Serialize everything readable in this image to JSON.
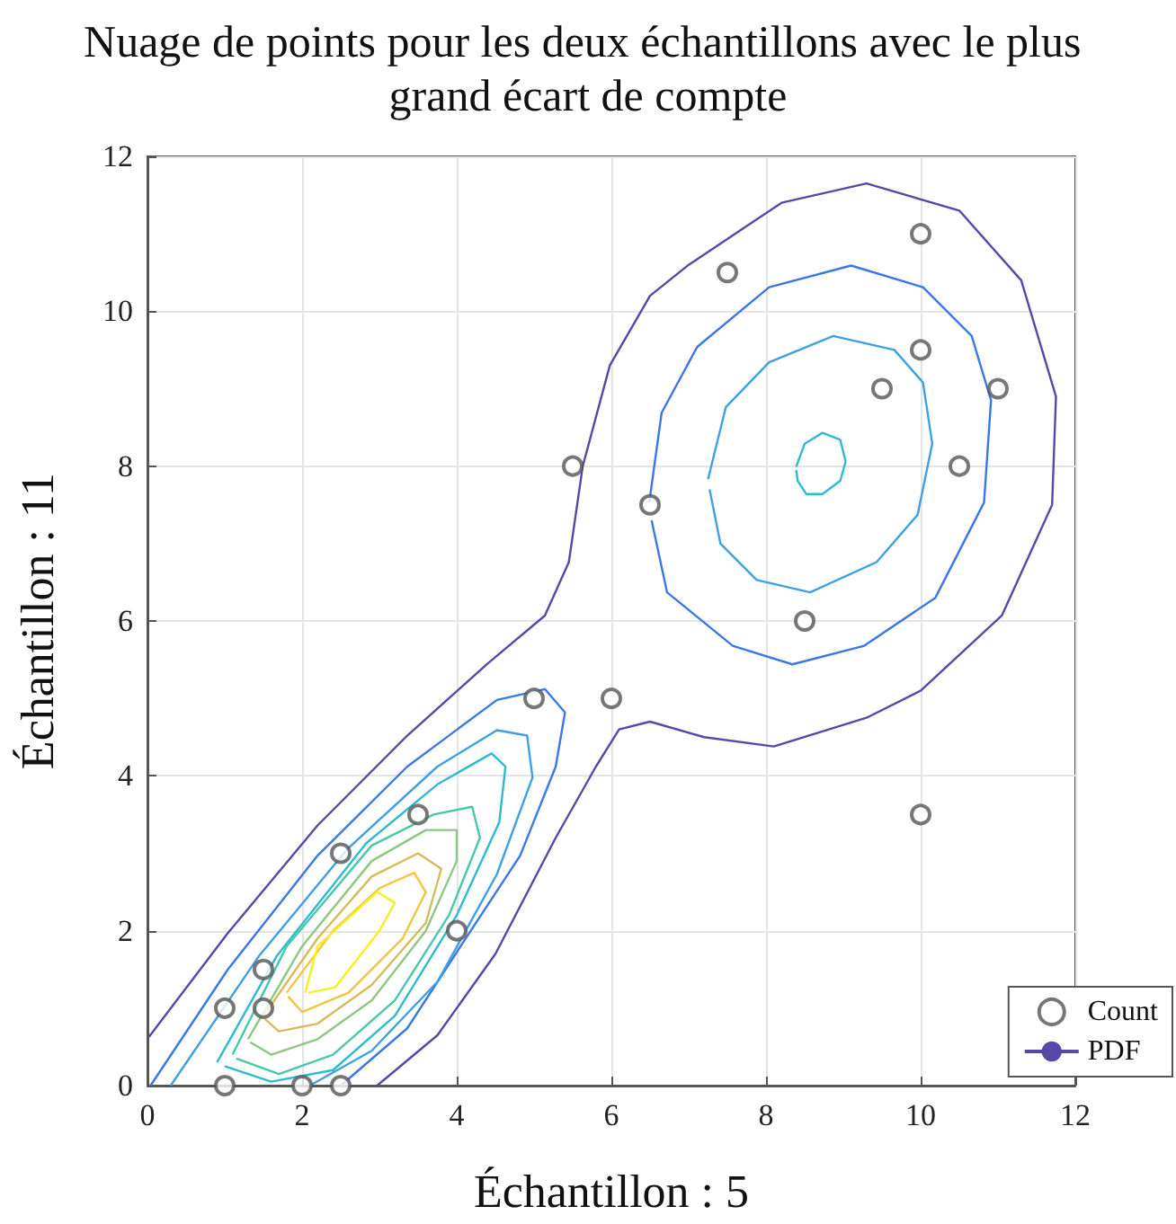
{
  "chart_data": {
    "type": "scatter",
    "title": "Nuage de points pour les deux échantillons avec le plus grand écart de compte",
    "xlabel": "Échantillon : 5",
    "ylabel": "Échantillon : 11",
    "xlim": [
      0,
      12
    ],
    "ylim": [
      0,
      12
    ],
    "xticks": [
      0,
      2,
      4,
      6,
      8,
      10,
      12
    ],
    "yticks": [
      0,
      2,
      4,
      6,
      8,
      10,
      12
    ],
    "grid": true,
    "legend": "bottom right",
    "series": [
      {
        "name": "Count",
        "marker": "circle",
        "color": "#555555",
        "x": [
          1,
          1,
          1.5,
          1.5,
          2,
          2.5,
          2.5,
          3.5,
          4,
          5,
          6,
          5.5,
          6.5,
          7.5,
          8.5,
          9.5,
          10,
          10,
          11,
          10.5,
          10
        ],
        "values": [
          0,
          1,
          1,
          1.5,
          0,
          0,
          3,
          3.5,
          2,
          5,
          5,
          8,
          7.5,
          10.5,
          6,
          9,
          11,
          9.5,
          9,
          8,
          3.5
        ]
      },
      {
        "name": "PDF",
        "type": "line",
        "marker": "none",
        "color": "#5548a8",
        "x": [
          0.02,
          1.04,
          2.2,
          3.36,
          4.4,
          5.14,
          5.45,
          5.63,
          5.98,
          6.5,
          7.0,
          8.2,
          9.3,
          10.5,
          11.3,
          11.75,
          11.7,
          11.05,
          10.0,
          9.3,
          8.1,
          7.2,
          6.5,
          6.1,
          5.8,
          5.28,
          4.5,
          3.75,
          2.97
        ],
        "values": [
          0.63,
          1.97,
          3.36,
          4.52,
          5.45,
          6.07,
          6.76,
          8.0,
          9.3,
          10.2,
          10.6,
          11.4,
          11.65,
          11.3,
          10.4,
          8.9,
          7.5,
          6.07,
          5.1,
          4.75,
          4.38,
          4.5,
          4.7,
          4.6,
          4.12,
          3.2,
          1.7,
          0.65,
          0
        ]
      },
      {
        "type": "line",
        "marker": "none",
        "color": "#3a78e6",
        "x": [
          6.49,
          6.65,
          7.11,
          8.04,
          9.1,
          10.03,
          10.66,
          10.91,
          10.82,
          10.19,
          9.27,
          8.34,
          7.57,
          6.72,
          6.52
        ],
        "values": [
          7.53,
          8.69,
          9.54,
          10.31,
          10.59,
          10.31,
          9.68,
          8.85,
          7.53,
          6.3,
          5.68,
          5.44,
          5.68,
          6.37,
          7.3
        ]
      },
      {
        "type": "line",
        "marker": "none",
        "color": "#3a78e6",
        "x": [
          0.04,
          1.04,
          2.2,
          3.36,
          4.52,
          5.14,
          5.4,
          5.28,
          4.82,
          4.05,
          3.36,
          2.5
        ],
        "values": [
          0,
          1.5,
          2.97,
          4.12,
          4.98,
          5.12,
          4.82,
          4.12,
          2.97,
          1.8,
          0.74,
          0
        ]
      },
      {
        "type": "line",
        "marker": "none",
        "color": "#3ea0e4",
        "x": [
          7.25,
          7.48,
          8.04,
          8.87,
          9.66,
          10.03,
          10.15,
          9.96,
          9.43,
          8.57,
          7.88,
          7.41,
          7.27
        ],
        "values": [
          7.83,
          8.76,
          9.34,
          9.68,
          9.5,
          9.08,
          8.29,
          7.37,
          6.76,
          6.37,
          6.53,
          7.0,
          7.7
        ]
      },
      {
        "type": "line",
        "marker": "none",
        "color": "#3ea0e4",
        "x": [
          0.3,
          1.44,
          2.59,
          3.75,
          4.52,
          4.91,
          4.98,
          4.52,
          3.75,
          2.9,
          2.1
        ],
        "values": [
          0,
          1.67,
          3.06,
          4.12,
          4.59,
          4.52,
          3.98,
          2.73,
          1.34,
          0.45,
          0
        ]
      },
      {
        "type": "line",
        "marker": "none",
        "color": "#2dbbd0",
        "x": [
          8.39,
          8.5,
          8.73,
          8.96,
          9.03,
          8.96,
          8.73,
          8.52,
          8.41,
          8.39
        ],
        "values": [
          7.99,
          8.29,
          8.43,
          8.34,
          8.06,
          7.81,
          7.64,
          7.64,
          7.81,
          7.95
        ]
      },
      {
        "type": "line",
        "marker": "none",
        "color": "#2dbbd0",
        "x": [
          0.9,
          1.67,
          2.83,
          3.75,
          4.45,
          4.63,
          4.55,
          4.0,
          3.2,
          2.4,
          1.6,
          1.0
        ],
        "values": [
          0.3,
          1.67,
          3.13,
          3.89,
          4.29,
          4.12,
          3.4,
          2.2,
          0.9,
          0.2,
          0.05,
          0.25
        ]
      },
      {
        "type": "line",
        "marker": "none",
        "color": "#48c8a8",
        "x": [
          1.1,
          1.8,
          2.9,
          3.7,
          4.2,
          4.3,
          3.9,
          3.2,
          2.4,
          1.7,
          1.15
        ],
        "values": [
          0.4,
          1.8,
          3.1,
          3.5,
          3.6,
          3.2,
          2.2,
          1.1,
          0.4,
          0.15,
          0.35
        ]
      },
      {
        "type": "line",
        "marker": "none",
        "color": "#8cc880",
        "x": [
          1.3,
          2.0,
          2.9,
          3.6,
          4.0,
          4.0,
          3.6,
          2.9,
          2.2,
          1.6,
          1.33
        ],
        "values": [
          0.6,
          1.8,
          2.9,
          3.3,
          3.3,
          2.9,
          2.0,
          1.1,
          0.6,
          0.4,
          0.56
        ]
      },
      {
        "type": "line",
        "marker": "none",
        "color": "#d4bc5c",
        "x": [
          1.5,
          2.2,
          2.9,
          3.5,
          3.8,
          3.6,
          2.9,
          2.2,
          1.7,
          1.52
        ],
        "values": [
          0.9,
          1.9,
          2.7,
          3.0,
          2.8,
          2.1,
          1.3,
          0.8,
          0.7,
          0.86
        ]
      },
      {
        "type": "line",
        "marker": "none",
        "color": "#f6c440",
        "x": [
          1.8,
          2.4,
          3.0,
          3.45,
          3.6,
          3.3,
          2.6,
          2.0,
          1.82
        ],
        "values": [
          1.2,
          2.0,
          2.55,
          2.75,
          2.5,
          1.9,
          1.2,
          0.95,
          1.15
        ]
      },
      {
        "type": "line",
        "marker": "none",
        "color": "#f5f020",
        "x": [
          2.04,
          2.2,
          2.97,
          3.2,
          3.0,
          2.43,
          2.08
        ],
        "values": [
          1.2,
          1.8,
          2.5,
          2.36,
          2.0,
          1.27,
          1.2
        ]
      }
    ]
  }
}
